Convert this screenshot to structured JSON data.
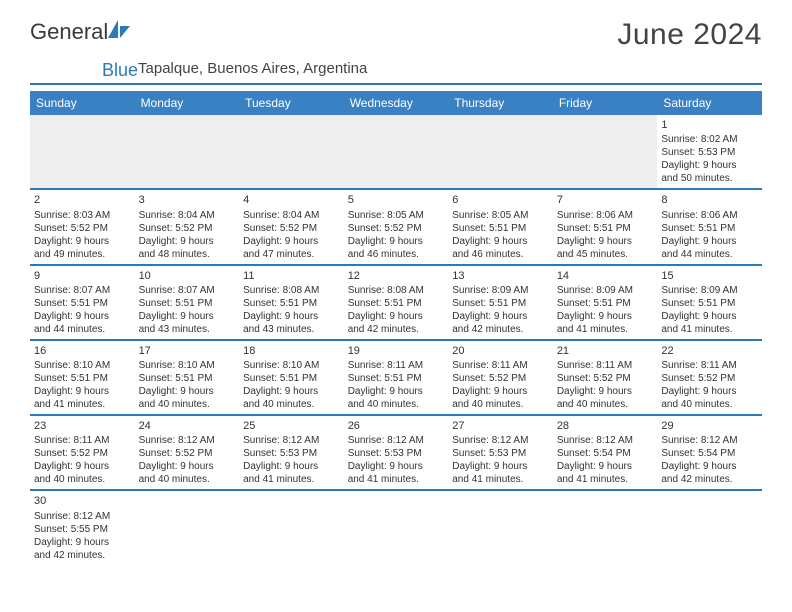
{
  "logo": {
    "text1": "General",
    "text2": "Blue"
  },
  "title": "June 2024",
  "location": "Tapalque, Buenos Aires, Argentina",
  "colors": {
    "header_bg": "#3a81c4",
    "header_text": "#ffffff",
    "rule": "#2a7ab8",
    "body_text": "#333333",
    "title_text": "#444444",
    "empty_bg": "#eeeeee",
    "page_bg": "#ffffff"
  },
  "typography": {
    "title_fontsize": 30,
    "location_fontsize": 15,
    "dayhead_fontsize": 12,
    "cell_fontsize": 10,
    "daynum_fontsize": 11
  },
  "day_headers": [
    "Sunday",
    "Monday",
    "Tuesday",
    "Wednesday",
    "Thursday",
    "Friday",
    "Saturday"
  ],
  "weeks": [
    [
      null,
      null,
      null,
      null,
      null,
      null,
      {
        "n": "1",
        "sunrise": "Sunrise: 8:02 AM",
        "sunset": "Sunset: 5:53 PM",
        "dl1": "Daylight: 9 hours",
        "dl2": "and 50 minutes."
      }
    ],
    [
      {
        "n": "2",
        "sunrise": "Sunrise: 8:03 AM",
        "sunset": "Sunset: 5:52 PM",
        "dl1": "Daylight: 9 hours",
        "dl2": "and 49 minutes."
      },
      {
        "n": "3",
        "sunrise": "Sunrise: 8:04 AM",
        "sunset": "Sunset: 5:52 PM",
        "dl1": "Daylight: 9 hours",
        "dl2": "and 48 minutes."
      },
      {
        "n": "4",
        "sunrise": "Sunrise: 8:04 AM",
        "sunset": "Sunset: 5:52 PM",
        "dl1": "Daylight: 9 hours",
        "dl2": "and 47 minutes."
      },
      {
        "n": "5",
        "sunrise": "Sunrise: 8:05 AM",
        "sunset": "Sunset: 5:52 PM",
        "dl1": "Daylight: 9 hours",
        "dl2": "and 46 minutes."
      },
      {
        "n": "6",
        "sunrise": "Sunrise: 8:05 AM",
        "sunset": "Sunset: 5:51 PM",
        "dl1": "Daylight: 9 hours",
        "dl2": "and 46 minutes."
      },
      {
        "n": "7",
        "sunrise": "Sunrise: 8:06 AM",
        "sunset": "Sunset: 5:51 PM",
        "dl1": "Daylight: 9 hours",
        "dl2": "and 45 minutes."
      },
      {
        "n": "8",
        "sunrise": "Sunrise: 8:06 AM",
        "sunset": "Sunset: 5:51 PM",
        "dl1": "Daylight: 9 hours",
        "dl2": "and 44 minutes."
      }
    ],
    [
      {
        "n": "9",
        "sunrise": "Sunrise: 8:07 AM",
        "sunset": "Sunset: 5:51 PM",
        "dl1": "Daylight: 9 hours",
        "dl2": "and 44 minutes."
      },
      {
        "n": "10",
        "sunrise": "Sunrise: 8:07 AM",
        "sunset": "Sunset: 5:51 PM",
        "dl1": "Daylight: 9 hours",
        "dl2": "and 43 minutes."
      },
      {
        "n": "11",
        "sunrise": "Sunrise: 8:08 AM",
        "sunset": "Sunset: 5:51 PM",
        "dl1": "Daylight: 9 hours",
        "dl2": "and 43 minutes."
      },
      {
        "n": "12",
        "sunrise": "Sunrise: 8:08 AM",
        "sunset": "Sunset: 5:51 PM",
        "dl1": "Daylight: 9 hours",
        "dl2": "and 42 minutes."
      },
      {
        "n": "13",
        "sunrise": "Sunrise: 8:09 AM",
        "sunset": "Sunset: 5:51 PM",
        "dl1": "Daylight: 9 hours",
        "dl2": "and 42 minutes."
      },
      {
        "n": "14",
        "sunrise": "Sunrise: 8:09 AM",
        "sunset": "Sunset: 5:51 PM",
        "dl1": "Daylight: 9 hours",
        "dl2": "and 41 minutes."
      },
      {
        "n": "15",
        "sunrise": "Sunrise: 8:09 AM",
        "sunset": "Sunset: 5:51 PM",
        "dl1": "Daylight: 9 hours",
        "dl2": "and 41 minutes."
      }
    ],
    [
      {
        "n": "16",
        "sunrise": "Sunrise: 8:10 AM",
        "sunset": "Sunset: 5:51 PM",
        "dl1": "Daylight: 9 hours",
        "dl2": "and 41 minutes."
      },
      {
        "n": "17",
        "sunrise": "Sunrise: 8:10 AM",
        "sunset": "Sunset: 5:51 PM",
        "dl1": "Daylight: 9 hours",
        "dl2": "and 40 minutes."
      },
      {
        "n": "18",
        "sunrise": "Sunrise: 8:10 AM",
        "sunset": "Sunset: 5:51 PM",
        "dl1": "Daylight: 9 hours",
        "dl2": "and 40 minutes."
      },
      {
        "n": "19",
        "sunrise": "Sunrise: 8:11 AM",
        "sunset": "Sunset: 5:51 PM",
        "dl1": "Daylight: 9 hours",
        "dl2": "and 40 minutes."
      },
      {
        "n": "20",
        "sunrise": "Sunrise: 8:11 AM",
        "sunset": "Sunset: 5:52 PM",
        "dl1": "Daylight: 9 hours",
        "dl2": "and 40 minutes."
      },
      {
        "n": "21",
        "sunrise": "Sunrise: 8:11 AM",
        "sunset": "Sunset: 5:52 PM",
        "dl1": "Daylight: 9 hours",
        "dl2": "and 40 minutes."
      },
      {
        "n": "22",
        "sunrise": "Sunrise: 8:11 AM",
        "sunset": "Sunset: 5:52 PM",
        "dl1": "Daylight: 9 hours",
        "dl2": "and 40 minutes."
      }
    ],
    [
      {
        "n": "23",
        "sunrise": "Sunrise: 8:11 AM",
        "sunset": "Sunset: 5:52 PM",
        "dl1": "Daylight: 9 hours",
        "dl2": "and 40 minutes."
      },
      {
        "n": "24",
        "sunrise": "Sunrise: 8:12 AM",
        "sunset": "Sunset: 5:52 PM",
        "dl1": "Daylight: 9 hours",
        "dl2": "and 40 minutes."
      },
      {
        "n": "25",
        "sunrise": "Sunrise: 8:12 AM",
        "sunset": "Sunset: 5:53 PM",
        "dl1": "Daylight: 9 hours",
        "dl2": "and 41 minutes."
      },
      {
        "n": "26",
        "sunrise": "Sunrise: 8:12 AM",
        "sunset": "Sunset: 5:53 PM",
        "dl1": "Daylight: 9 hours",
        "dl2": "and 41 minutes."
      },
      {
        "n": "27",
        "sunrise": "Sunrise: 8:12 AM",
        "sunset": "Sunset: 5:53 PM",
        "dl1": "Daylight: 9 hours",
        "dl2": "and 41 minutes."
      },
      {
        "n": "28",
        "sunrise": "Sunrise: 8:12 AM",
        "sunset": "Sunset: 5:54 PM",
        "dl1": "Daylight: 9 hours",
        "dl2": "and 41 minutes."
      },
      {
        "n": "29",
        "sunrise": "Sunrise: 8:12 AM",
        "sunset": "Sunset: 5:54 PM",
        "dl1": "Daylight: 9 hours",
        "dl2": "and 42 minutes."
      }
    ],
    [
      {
        "n": "30",
        "sunrise": "Sunrise: 8:12 AM",
        "sunset": "Sunset: 5:55 PM",
        "dl1": "Daylight: 9 hours",
        "dl2": "and 42 minutes."
      },
      null,
      null,
      null,
      null,
      null,
      null
    ]
  ]
}
